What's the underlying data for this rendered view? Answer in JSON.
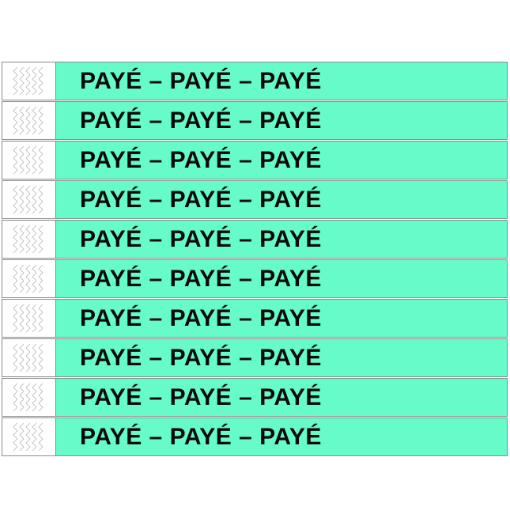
{
  "band_text": "PAYÉ – PAYÉ – PAYÉ",
  "band_count": 10,
  "colors": {
    "band": "#66fbc8",
    "tab": "#ffffff",
    "text": "#0a0a0a"
  },
  "tab_icon": "zigzag-security-cut-icon"
}
